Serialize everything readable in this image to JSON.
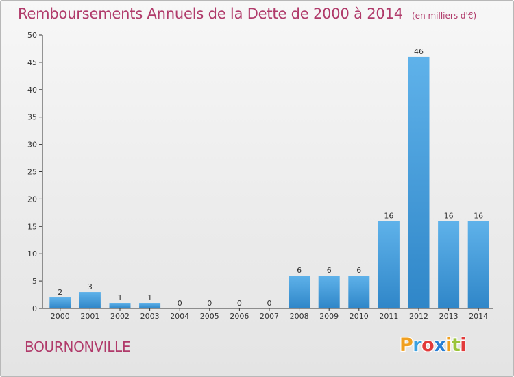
{
  "header": {
    "title": "Remboursements Annuels de la Dette de 2000 à 2014",
    "unit": "(en milliers d'€)"
  },
  "footer": {
    "place": "BOURNONVILLE",
    "logo_letters": [
      "P",
      "r",
      "o",
      "x",
      "i",
      "t",
      "i"
    ],
    "logo_colors": [
      "#f0a020",
      "#3aa0e0",
      "#e23b3b",
      "#2a7fd4",
      "#f0a020",
      "#9bc43a",
      "#e23b3b"
    ]
  },
  "colors": {
    "bar_top": "#5fb2ea",
    "bar_bottom": "#2f86c8",
    "title": "#b03a6a",
    "axis": "#333333"
  },
  "chart_data": {
    "type": "bar",
    "categories": [
      "2000",
      "2001",
      "2002",
      "2003",
      "2004",
      "2005",
      "2006",
      "2007",
      "2008",
      "2009",
      "2010",
      "2011",
      "2012",
      "2013",
      "2014"
    ],
    "values": [
      2,
      3,
      1,
      1,
      0,
      0,
      0,
      0,
      6,
      6,
      6,
      16,
      46,
      16,
      16
    ],
    "yticks": [
      0,
      5,
      10,
      15,
      20,
      25,
      30,
      35,
      40,
      45,
      50
    ],
    "ylim": [
      0,
      50
    ],
    "grid": false,
    "data_labels": true
  }
}
